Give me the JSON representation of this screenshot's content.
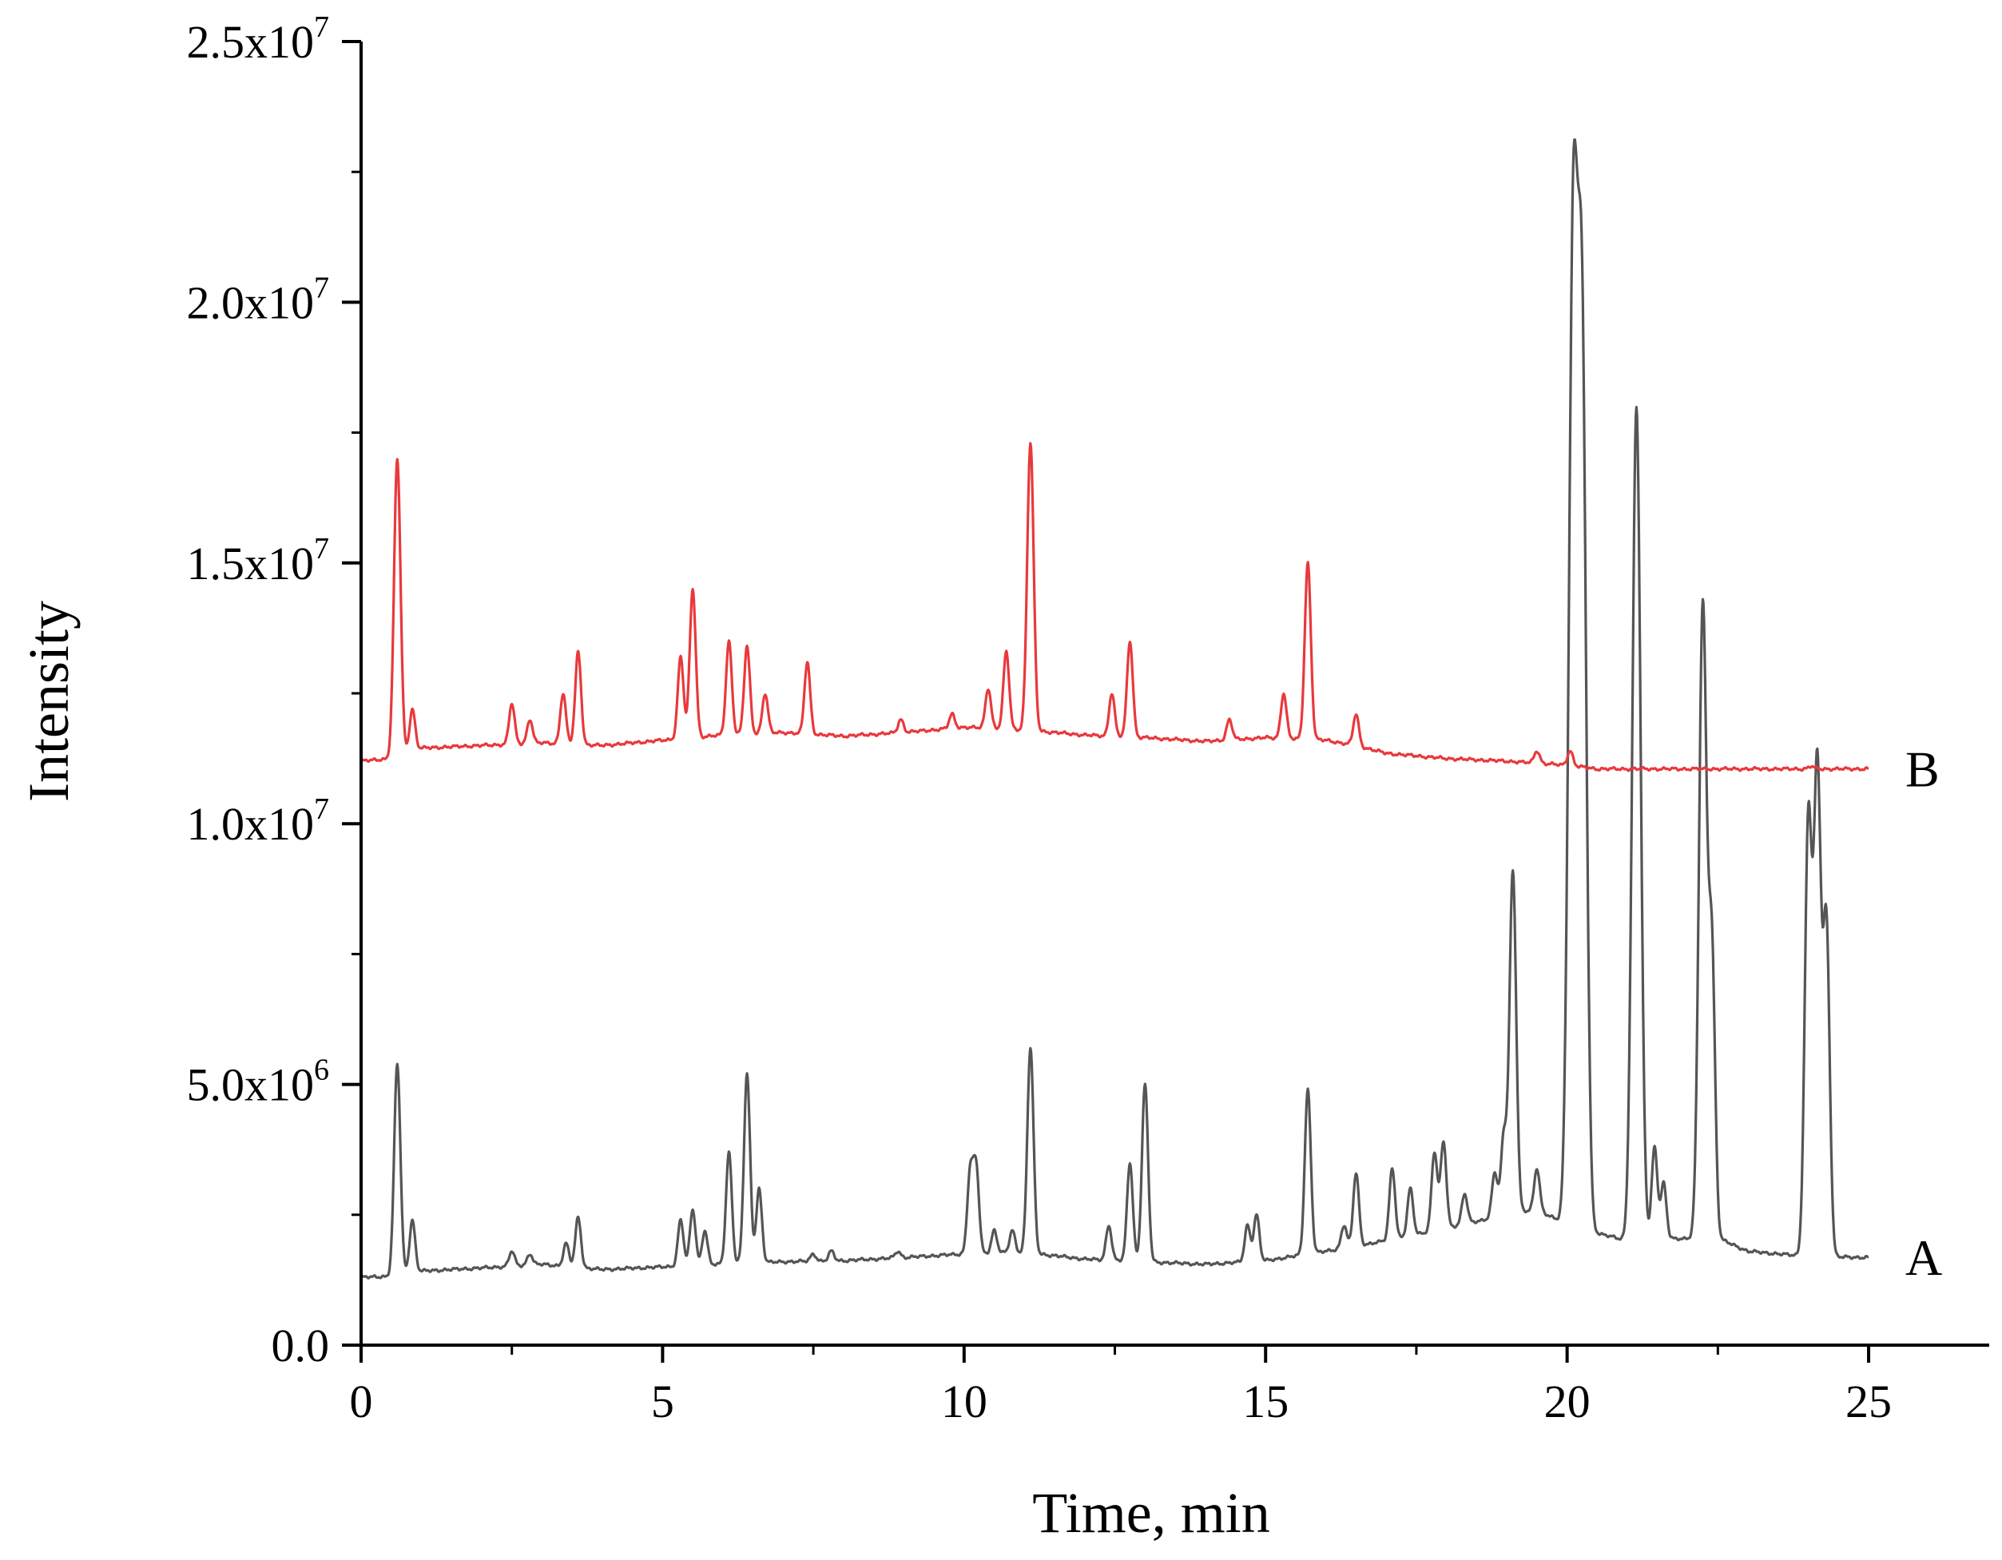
{
  "chart_data": {
    "type": "line",
    "xlabel": "Time, min",
    "ylabel": "Intensity",
    "xlim": [
      0,
      27
    ],
    "ylim": [
      0,
      25000000
    ],
    "x_ticks": [
      {
        "value": 0,
        "label": "0"
      },
      {
        "value": 5,
        "label": "5"
      },
      {
        "value": 10,
        "label": "10"
      },
      {
        "value": 15,
        "label": "15"
      },
      {
        "value": 20,
        "label": "20"
      },
      {
        "value": 25,
        "label": "25"
      }
    ],
    "y_ticks": [
      {
        "value": 0,
        "mantissa": "0.0",
        "exp": ""
      },
      {
        "value": 5000000,
        "mantissa": "5.0x10",
        "exp": "6"
      },
      {
        "value": 10000000,
        "mantissa": "1.0x10",
        "exp": "7"
      },
      {
        "value": 15000000,
        "mantissa": "1.5x10",
        "exp": "7"
      },
      {
        "value": 20000000,
        "mantissa": "2.0x10",
        "exp": "7"
      },
      {
        "value": 25000000,
        "mantissa": "2.5x10",
        "exp": "7"
      }
    ],
    "grid": false,
    "series": [
      {
        "name": "A",
        "color": "#555555",
        "baseline": [
          [
            0,
            1300000
          ],
          [
            0.5,
            1320000
          ],
          [
            1.0,
            1420000
          ],
          [
            2.0,
            1480000
          ],
          [
            3.0,
            1550000
          ],
          [
            4.0,
            1450000
          ],
          [
            5.0,
            1500000
          ],
          [
            6.0,
            1550000
          ],
          [
            7.0,
            1600000
          ],
          [
            8.0,
            1620000
          ],
          [
            9.0,
            1680000
          ],
          [
            10.0,
            1750000
          ],
          [
            11.0,
            1780000
          ],
          [
            12.0,
            1650000
          ],
          [
            13.0,
            1600000
          ],
          [
            14.0,
            1550000
          ],
          [
            15.0,
            1620000
          ],
          [
            16.0,
            1800000
          ],
          [
            17.0,
            2000000
          ],
          [
            18.0,
            2250000
          ],
          [
            19.0,
            2500000
          ],
          [
            19.5,
            2600000
          ],
          [
            20.0,
            2300000
          ],
          [
            21.0,
            2000000
          ],
          [
            22.0,
            2050000
          ],
          [
            22.5,
            2050000
          ],
          [
            23.0,
            1800000
          ],
          [
            24.0,
            1700000
          ],
          [
            25.0,
            1680000
          ]
        ],
        "peaks": [
          [
            0.6,
            5400000
          ],
          [
            0.85,
            2400000
          ],
          [
            2.5,
            1800000
          ],
          [
            2.8,
            1750000
          ],
          [
            3.4,
            1950000
          ],
          [
            3.6,
            2450000
          ],
          [
            5.3,
            2400000
          ],
          [
            5.5,
            2600000
          ],
          [
            5.7,
            2200000
          ],
          [
            6.1,
            3700000
          ],
          [
            6.4,
            5200000
          ],
          [
            6.6,
            3000000
          ],
          [
            7.5,
            1750000
          ],
          [
            7.8,
            1800000
          ],
          [
            8.9,
            1800000
          ],
          [
            10.1,
            3300000
          ],
          [
            10.2,
            3400000
          ],
          [
            10.5,
            2200000
          ],
          [
            10.8,
            2200000
          ],
          [
            11.1,
            5700000
          ],
          [
            12.4,
            2300000
          ],
          [
            12.75,
            3500000
          ],
          [
            13.0,
            5000000
          ],
          [
            14.7,
            2300000
          ],
          [
            14.85,
            2500000
          ],
          [
            15.7,
            4900000
          ],
          [
            16.3,
            2300000
          ],
          [
            16.5,
            3300000
          ],
          [
            17.1,
            3400000
          ],
          [
            17.4,
            3000000
          ],
          [
            17.8,
            3700000
          ],
          [
            17.95,
            3900000
          ],
          [
            18.3,
            2900000
          ],
          [
            18.8,
            3300000
          ],
          [
            18.95,
            4000000
          ],
          [
            19.1,
            9100000
          ],
          [
            19.5,
            3400000
          ],
          [
            20.1,
            21000000
          ],
          [
            20.25,
            18500000
          ],
          [
            21.15,
            18000000
          ],
          [
            21.45,
            3800000
          ],
          [
            21.6,
            3100000
          ],
          [
            22.25,
            14200000
          ],
          [
            22.4,
            7500000
          ],
          [
            24.0,
            10000000
          ],
          [
            24.15,
            11000000
          ],
          [
            24.3,
            8000000
          ]
        ]
      },
      {
        "name": "B",
        "color": "#e8393c",
        "baseline": [
          [
            0,
            11200000
          ],
          [
            0.5,
            11250000
          ],
          [
            1.0,
            11450000
          ],
          [
            2.0,
            11500000
          ],
          [
            3.0,
            11550000
          ],
          [
            4.0,
            11500000
          ],
          [
            5.0,
            11600000
          ],
          [
            6.0,
            11700000
          ],
          [
            7.0,
            11750000
          ],
          [
            8.0,
            11680000
          ],
          [
            9.0,
            11750000
          ],
          [
            10.0,
            11850000
          ],
          [
            11.0,
            11800000
          ],
          [
            12.0,
            11700000
          ],
          [
            13.0,
            11650000
          ],
          [
            14.0,
            11580000
          ],
          [
            15.0,
            11650000
          ],
          [
            16.0,
            11600000
          ],
          [
            16.5,
            11500000
          ],
          [
            17.0,
            11350000
          ],
          [
            18.0,
            11250000
          ],
          [
            19.0,
            11200000
          ],
          [
            20.0,
            11120000
          ],
          [
            20.5,
            11050000
          ],
          [
            25.0,
            11050000
          ]
        ],
        "peaks": [
          [
            0.6,
            17000000
          ],
          [
            0.85,
            12200000
          ],
          [
            2.5,
            12300000
          ],
          [
            2.8,
            12000000
          ],
          [
            3.35,
            12500000
          ],
          [
            3.6,
            13300000
          ],
          [
            5.3,
            13200000
          ],
          [
            5.5,
            14500000
          ],
          [
            6.1,
            13500000
          ],
          [
            6.4,
            13400000
          ],
          [
            6.7,
            12500000
          ],
          [
            7.4,
            13100000
          ],
          [
            8.95,
            12000000
          ],
          [
            9.8,
            12100000
          ],
          [
            10.4,
            12600000
          ],
          [
            10.7,
            13300000
          ],
          [
            11.1,
            17300000
          ],
          [
            12.45,
            12500000
          ],
          [
            12.75,
            13500000
          ],
          [
            14.4,
            12000000
          ],
          [
            15.3,
            12500000
          ],
          [
            15.7,
            15000000
          ],
          [
            16.5,
            12100000
          ],
          [
            19.5,
            11400000
          ],
          [
            20.05,
            11400000
          ],
          [
            24.05,
            11100000
          ]
        ]
      }
    ]
  }
}
